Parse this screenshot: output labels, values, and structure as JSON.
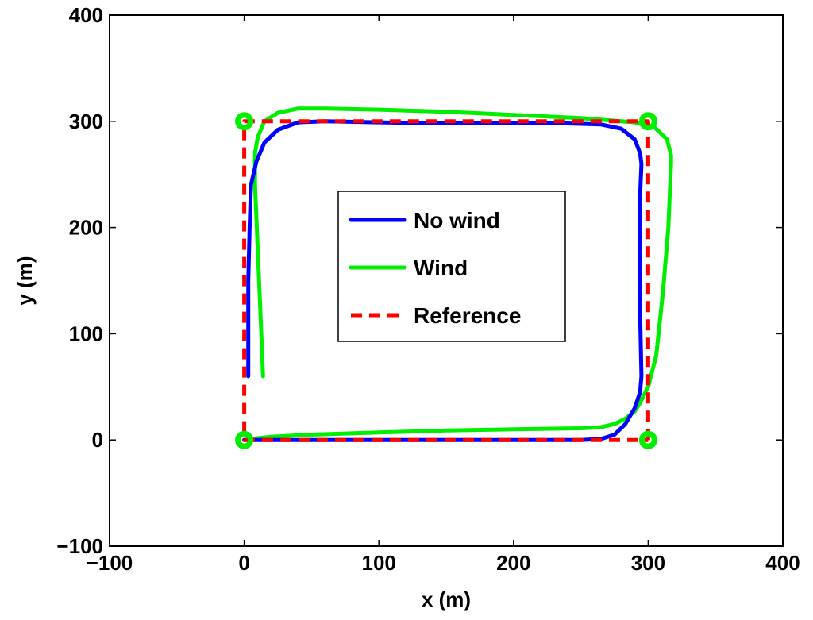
{
  "chart_data": {
    "type": "line",
    "title": "",
    "xlabel": "x (m)",
    "ylabel": "y (m)",
    "xlim": [
      -100,
      400
    ],
    "ylim": [
      -100,
      400
    ],
    "xticks": [
      -100,
      0,
      100,
      200,
      300,
      400
    ],
    "yticks": [
      -100,
      0,
      100,
      200,
      300,
      400
    ],
    "xtick_labels": [
      "−100",
      "0",
      "100",
      "200",
      "300",
      "400"
    ],
    "ytick_labels": [
      "−100",
      "0",
      "100",
      "200",
      "300",
      "400"
    ],
    "grid": false,
    "legend_position": "center",
    "series": [
      {
        "name": "No wind",
        "color": "#0000ff",
        "style": "solid",
        "x": [
          3,
          3,
          4,
          5,
          9,
          15,
          25,
          40,
          60,
          100,
          150,
          200,
          240,
          265,
          280,
          290,
          294,
          295,
          294,
          294,
          294,
          295,
          294,
          290,
          283,
          275,
          265,
          250,
          200,
          150,
          100,
          50,
          20,
          5,
          0
        ],
        "y": [
          60,
          150,
          200,
          240,
          262,
          280,
          292,
          299,
          300,
          299,
          298,
          298,
          298,
          297,
          293,
          283,
          270,
          260,
          230,
          180,
          120,
          60,
          45,
          30,
          15,
          5,
          1,
          0,
          0,
          0,
          0,
          0,
          0,
          0,
          0
        ]
      },
      {
        "name": "Wind",
        "color": "#00ee00",
        "style": "solid",
        "x": [
          14,
          12,
          10,
          8,
          8,
          10,
          15,
          25,
          40,
          60,
          100,
          150,
          200,
          250,
          290,
          305,
          314,
          317,
          317,
          315,
          311,
          306,
          300,
          294,
          290,
          283,
          275,
          265,
          250,
          200,
          150,
          100,
          50,
          20,
          5,
          0
        ],
        "y": [
          60,
          120,
          180,
          240,
          270,
          285,
          300,
          308,
          312,
          312,
          311,
          309,
          306,
          303,
          299,
          294,
          283,
          268,
          260,
          200,
          140,
          80,
          50,
          35,
          27,
          20,
          15,
          12,
          11,
          10,
          9,
          7,
          5,
          3,
          1,
          0
        ]
      },
      {
        "name": "Reference",
        "color": "#ff0000",
        "style": "dashed",
        "x": [
          300,
          300,
          0,
          0,
          300
        ],
        "y": [
          0,
          300,
          300,
          0,
          0
        ]
      }
    ],
    "waypoints": {
      "color": "#00ee00",
      "x": [
        0,
        300,
        300,
        0
      ],
      "y": [
        300,
        300,
        0,
        0
      ]
    }
  }
}
